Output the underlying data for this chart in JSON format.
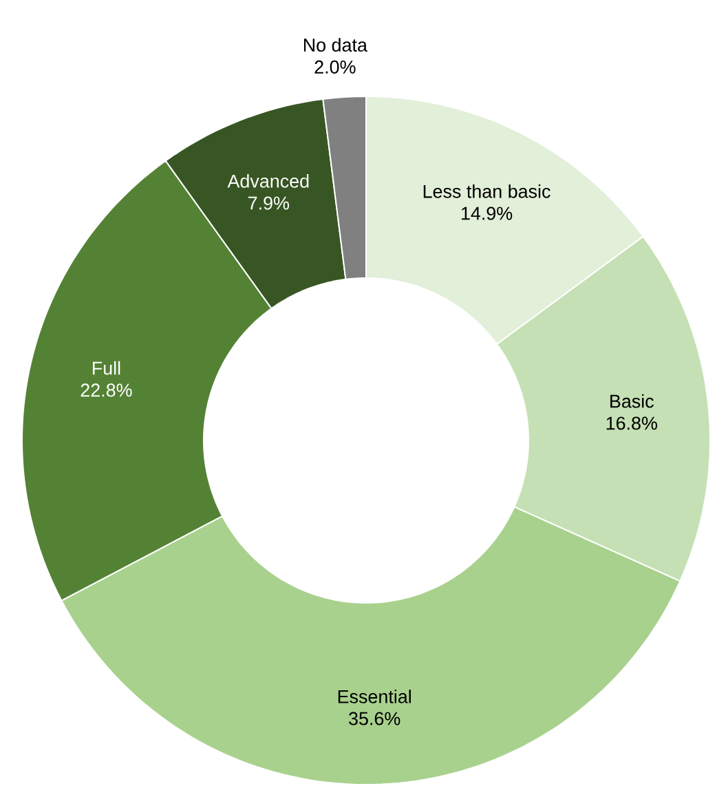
{
  "chart_data": {
    "type": "donut",
    "categories": [
      "Less than basic",
      "Basic",
      "Essential",
      "Full",
      "Advanced",
      "No data"
    ],
    "values": [
      14.9,
      16.8,
      35.6,
      22.8,
      7.9,
      2.0
    ],
    "colors": [
      "#e2efd9",
      "#c5e0b4",
      "#a9d18e",
      "#548235",
      "#375623",
      "#808080"
    ],
    "value_labels": [
      "14.9%",
      "16.8%",
      "35.6%",
      "22.8%",
      "7.9%",
      "2.0%"
    ]
  }
}
